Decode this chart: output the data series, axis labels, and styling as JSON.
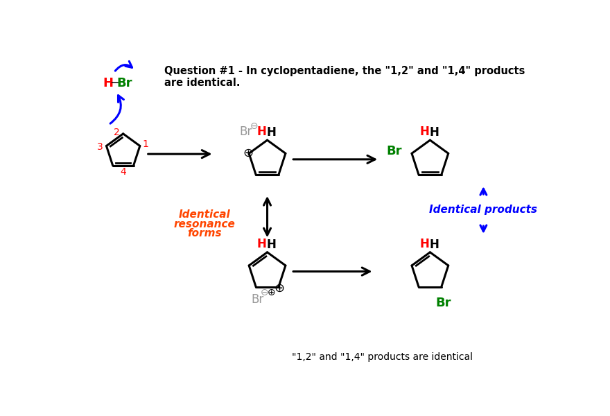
{
  "title_line1": "Question #1 - In cyclopentadiene, the \"1,2\" and \"1,4\" products",
  "title_line2": "are identical.",
  "bg_color": "#ffffff",
  "text_color": "#000000",
  "red_color": "#ff0000",
  "green_color": "#008000",
  "blue_color": "#0000ff",
  "gray_color": "#999999",
  "italic_red": "#ff4500",
  "bottom_text": "\"1,2\" and \"1,4\" products are identical",
  "identical_resonance": "Identical\nresonance\nforms",
  "identical_products": "Identical products"
}
